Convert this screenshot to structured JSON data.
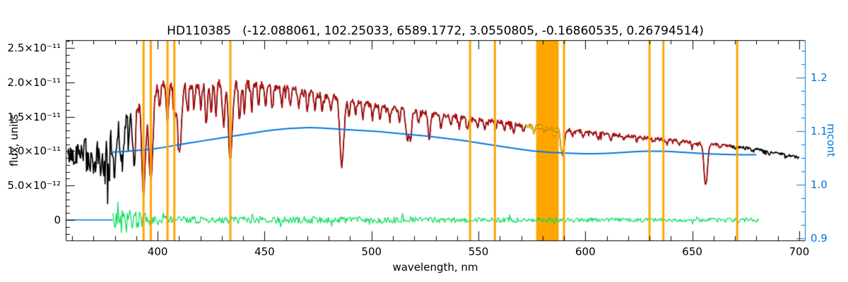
{
  "chart_data": {
    "type": "line",
    "title": "HD110385   (-12.088061, 102.25033, 6589.1772, 3.0550805, -0.16860535, 0.26794514)",
    "xlabel": "wavelength, nm",
    "ylabel_left": "flux, units",
    "ylabel_right": "mcont",
    "xlim": [
      357,
      703
    ],
    "flux_lim": [
      -2.97e-12,
      2.613e-11
    ],
    "mcont_lim": [
      0.8963,
      1.2697
    ],
    "x_ticks": [
      400,
      450,
      500,
      550,
      600,
      650,
      700
    ],
    "flux_ticks": {
      "values": [
        0,
        5e-12,
        1e-11,
        1.5e-11,
        2e-11,
        2.5e-11
      ],
      "labels": [
        "0",
        "5.0×10⁻¹²",
        "1.0×10⁻¹¹",
        "1.5×10⁻¹¹",
        "2.0×10⁻¹¹",
        "2.5×10⁻¹¹"
      ]
    },
    "mcont_ticks": {
      "values": [
        0.9,
        1.0,
        1.1,
        1.2
      ],
      "labels": [
        "0.9",
        "1.0",
        "1.1",
        "1.2"
      ]
    },
    "colors": {
      "spectrum": "#000000",
      "fit": "#ee0000",
      "masked_fit": "#ffdd00",
      "residual": "#00dd55",
      "continuum": "#0077dd",
      "flagged": "#ffa500",
      "axis": "#000000",
      "right_axis": "#0077dd"
    },
    "noise_seed": 42,
    "spectrum_range": [
      358,
      700
    ],
    "fit_range": [
      389.5,
      668.5
    ],
    "masked_range": [
      572,
      589.5
    ],
    "residual_range": [
      379,
      681
    ],
    "zero_segment_range": [
      357,
      379
    ],
    "flagged_lines": [
      393.4,
      396.8,
      404.6,
      407.8,
      434.0,
      546.1,
      557.7,
      590.0,
      630.0,
      636.5,
      671.0
    ],
    "flagged_band": [
      577.0,
      587.5
    ],
    "continuum_flux_1e11": [
      [
        358,
        0.93
      ],
      [
        360,
        0.95
      ],
      [
        363,
        0.99
      ],
      [
        366,
        1.02
      ],
      [
        369,
        1.05
      ],
      [
        372,
        1.08
      ],
      [
        375,
        1.12
      ],
      [
        378,
        1.22
      ],
      [
        381,
        1.38
      ],
      [
        384,
        1.55
      ],
      [
        387,
        1.68
      ],
      [
        390,
        1.77
      ],
      [
        393,
        1.84
      ],
      [
        396,
        1.88
      ],
      [
        400,
        1.93
      ],
      [
        404,
        1.96
      ],
      [
        408,
        1.96
      ],
      [
        412,
        1.95
      ],
      [
        416,
        1.96
      ],
      [
        420,
        1.97
      ],
      [
        424,
        1.98
      ],
      [
        428,
        1.99
      ],
      [
        432,
        2.0
      ],
      [
        436,
        1.99
      ],
      [
        440,
        1.99
      ],
      [
        444,
        1.98
      ],
      [
        448,
        1.96
      ],
      [
        452,
        1.945
      ],
      [
        456,
        1.93
      ],
      [
        460,
        1.91
      ],
      [
        464,
        1.89
      ],
      [
        468,
        1.86
      ],
      [
        472,
        1.84
      ],
      [
        476,
        1.82
      ],
      [
        480,
        1.8
      ],
      [
        484,
        1.79
      ],
      [
        488,
        1.76
      ],
      [
        492,
        1.73
      ],
      [
        496,
        1.7
      ],
      [
        500,
        1.67
      ],
      [
        505,
        1.645
      ],
      [
        510,
        1.62
      ],
      [
        515,
        1.6
      ],
      [
        520,
        1.58
      ],
      [
        525,
        1.555
      ],
      [
        530,
        1.53
      ],
      [
        535,
        1.515
      ],
      [
        540,
        1.5
      ],
      [
        545,
        1.48
      ],
      [
        550,
        1.46
      ],
      [
        555,
        1.44
      ],
      [
        560,
        1.42
      ],
      [
        565,
        1.4
      ],
      [
        570,
        1.38
      ],
      [
        575,
        1.365
      ],
      [
        580,
        1.35
      ],
      [
        585,
        1.335
      ],
      [
        590,
        1.32
      ],
      [
        595,
        1.3
      ],
      [
        600,
        1.28
      ],
      [
        605,
        1.265
      ],
      [
        610,
        1.25
      ],
      [
        615,
        1.235
      ],
      [
        620,
        1.22
      ],
      [
        625,
        1.205
      ],
      [
        630,
        1.19
      ],
      [
        635,
        1.175
      ],
      [
        640,
        1.16
      ],
      [
        645,
        1.145
      ],
      [
        650,
        1.13
      ],
      [
        655,
        1.115
      ],
      [
        660,
        1.1
      ],
      [
        665,
        1.085
      ],
      [
        670,
        1.07
      ],
      [
        675,
        1.05
      ],
      [
        680,
        1.03
      ],
      [
        685,
        1.0
      ],
      [
        690,
        0.97
      ],
      [
        695,
        0.945
      ],
      [
        700,
        0.92
      ]
    ],
    "absorption_lines": [
      [
        368.0,
        0.3,
        0.5
      ],
      [
        370.5,
        0.4,
        0.6
      ],
      [
        373.0,
        0.35,
        0.5
      ],
      [
        375.0,
        0.4,
        0.6
      ],
      [
        377.1,
        0.42,
        0.6
      ],
      [
        379.8,
        0.48,
        0.7
      ],
      [
        383.5,
        0.52,
        0.8
      ],
      [
        386.5,
        0.3,
        0.5
      ],
      [
        388.9,
        0.52,
        0.8
      ],
      [
        393.4,
        0.78,
        0.9
      ],
      [
        396.8,
        0.72,
        0.9
      ],
      [
        400.9,
        0.18,
        0.4
      ],
      [
        404.6,
        0.28,
        0.5
      ],
      [
        407.8,
        0.25,
        0.5
      ],
      [
        410.2,
        0.52,
        0.9
      ],
      [
        414.0,
        0.22,
        0.4
      ],
      [
        417.0,
        0.18,
        0.4
      ],
      [
        420.2,
        0.18,
        0.4
      ],
      [
        422.7,
        0.32,
        0.5
      ],
      [
        425.0,
        0.2,
        0.4
      ],
      [
        427.2,
        0.22,
        0.4
      ],
      [
        430.8,
        0.3,
        0.6
      ],
      [
        434.0,
        0.58,
        0.9
      ],
      [
        438.3,
        0.28,
        0.5
      ],
      [
        440.5,
        0.22,
        0.4
      ],
      [
        444.0,
        0.18,
        0.4
      ],
      [
        447.2,
        0.18,
        0.4
      ],
      [
        450.5,
        0.15,
        0.4
      ],
      [
        453.5,
        0.17,
        0.4
      ],
      [
        458.0,
        0.15,
        0.4
      ],
      [
        462.0,
        0.14,
        0.4
      ],
      [
        466.0,
        0.13,
        0.4
      ],
      [
        470.0,
        0.13,
        0.4
      ],
      [
        473.5,
        0.12,
        0.4
      ],
      [
        477.0,
        0.12,
        0.4
      ],
      [
        481.0,
        0.12,
        0.4
      ],
      [
        486.1,
        0.55,
        0.9
      ],
      [
        489.5,
        0.16,
        0.4
      ],
      [
        492.5,
        0.13,
        0.4
      ],
      [
        496.0,
        0.12,
        0.4
      ],
      [
        500.5,
        0.12,
        0.4
      ],
      [
        504.0,
        0.11,
        0.4
      ],
      [
        508.5,
        0.11,
        0.4
      ],
      [
        513.0,
        0.11,
        0.4
      ],
      [
        516.9,
        0.26,
        0.8
      ],
      [
        518.4,
        0.22,
        0.5
      ],
      [
        522.0,
        0.12,
        0.4
      ],
      [
        527.0,
        0.24,
        0.5
      ],
      [
        532.5,
        0.12,
        0.4
      ],
      [
        537.0,
        0.1,
        0.4
      ],
      [
        541.0,
        0.1,
        0.4
      ],
      [
        545.0,
        0.1,
        0.4
      ],
      [
        549.5,
        0.09,
        0.4
      ],
      [
        553.0,
        0.09,
        0.4
      ],
      [
        558.0,
        0.08,
        0.4
      ],
      [
        562.0,
        0.08,
        0.4
      ],
      [
        566.5,
        0.08,
        0.4
      ],
      [
        571.0,
        0.07,
        0.4
      ],
      [
        576.0,
        0.07,
        0.4
      ],
      [
        581.0,
        0.07,
        0.4
      ],
      [
        585.5,
        0.07,
        0.4
      ],
      [
        589.3,
        0.3,
        0.8
      ],
      [
        594.0,
        0.06,
        0.4
      ],
      [
        599.0,
        0.06,
        0.4
      ],
      [
        606.0,
        0.06,
        0.4
      ],
      [
        612.0,
        0.06,
        0.4
      ],
      [
        618.0,
        0.05,
        0.4
      ],
      [
        624.0,
        0.05,
        0.4
      ],
      [
        632.0,
        0.05,
        0.4
      ],
      [
        638.0,
        0.05,
        0.4
      ],
      [
        644.0,
        0.05,
        0.4
      ],
      [
        650.0,
        0.05,
        0.4
      ],
      [
        656.3,
        0.55,
        0.8
      ],
      [
        663.0,
        0.04,
        0.4
      ],
      [
        670.0,
        0.04,
        0.4
      ],
      [
        678.0,
        0.04,
        0.4
      ],
      [
        686.0,
        0.04,
        0.4
      ],
      [
        694.0,
        0.04,
        0.4
      ]
    ],
    "noise_envelope_1e11": [
      [
        358,
        0.14
      ],
      [
        364,
        0.17
      ],
      [
        370,
        0.2
      ],
      [
        375,
        0.24
      ],
      [
        380,
        0.24
      ],
      [
        384,
        0.2
      ],
      [
        388,
        0.15
      ],
      [
        392,
        0.1
      ],
      [
        396,
        0.085
      ],
      [
        400,
        0.075
      ],
      [
        430,
        0.06
      ],
      [
        460,
        0.05
      ],
      [
        490,
        0.045
      ],
      [
        520,
        0.04
      ],
      [
        550,
        0.035
      ],
      [
        580,
        0.03
      ],
      [
        610,
        0.026
      ],
      [
        640,
        0.022
      ],
      [
        670,
        0.018
      ],
      [
        700,
        0.015
      ]
    ],
    "residual_envelope_1e11": [
      [
        379,
        0.1
      ],
      [
        383,
        0.16
      ],
      [
        388,
        0.14
      ],
      [
        392,
        0.12
      ],
      [
        396,
        0.1
      ],
      [
        400,
        0.07
      ],
      [
        410,
        0.055
      ],
      [
        430,
        0.05
      ],
      [
        450,
        0.05
      ],
      [
        470,
        0.05
      ],
      [
        490,
        0.045
      ],
      [
        510,
        0.045
      ],
      [
        530,
        0.04
      ],
      [
        550,
        0.04
      ],
      [
        570,
        0.035
      ],
      [
        590,
        0.035
      ],
      [
        610,
        0.03
      ],
      [
        630,
        0.03
      ],
      [
        650,
        0.03
      ],
      [
        670,
        0.03
      ],
      [
        681,
        0.03
      ]
    ],
    "continuum_ratio": [
      [
        378,
        1.061
      ],
      [
        384,
        1.062
      ],
      [
        390,
        1.064
      ],
      [
        396,
        1.066
      ],
      [
        402,
        1.069
      ],
      [
        410,
        1.075
      ],
      [
        418,
        1.08
      ],
      [
        426,
        1.085
      ],
      [
        434,
        1.09
      ],
      [
        442,
        1.095
      ],
      [
        450,
        1.1
      ],
      [
        458,
        1.104
      ],
      [
        465,
        1.106
      ],
      [
        472,
        1.107
      ],
      [
        480,
        1.105
      ],
      [
        488,
        1.103
      ],
      [
        496,
        1.101
      ],
      [
        504,
        1.099
      ],
      [
        512,
        1.096
      ],
      [
        520,
        1.093
      ],
      [
        528,
        1.09
      ],
      [
        536,
        1.086
      ],
      [
        544,
        1.082
      ],
      [
        552,
        1.077
      ],
      [
        560,
        1.072
      ],
      [
        568,
        1.067
      ],
      [
        576,
        1.063
      ],
      [
        584,
        1.06
      ],
      [
        592,
        1.059
      ],
      [
        600,
        1.058
      ],
      [
        608,
        1.058
      ],
      [
        616,
        1.06
      ],
      [
        624,
        1.062
      ],
      [
        632,
        1.063
      ],
      [
        640,
        1.062
      ],
      [
        648,
        1.06
      ],
      [
        656,
        1.058
      ],
      [
        664,
        1.057
      ],
      [
        672,
        1.056
      ],
      [
        680,
        1.056
      ]
    ]
  }
}
